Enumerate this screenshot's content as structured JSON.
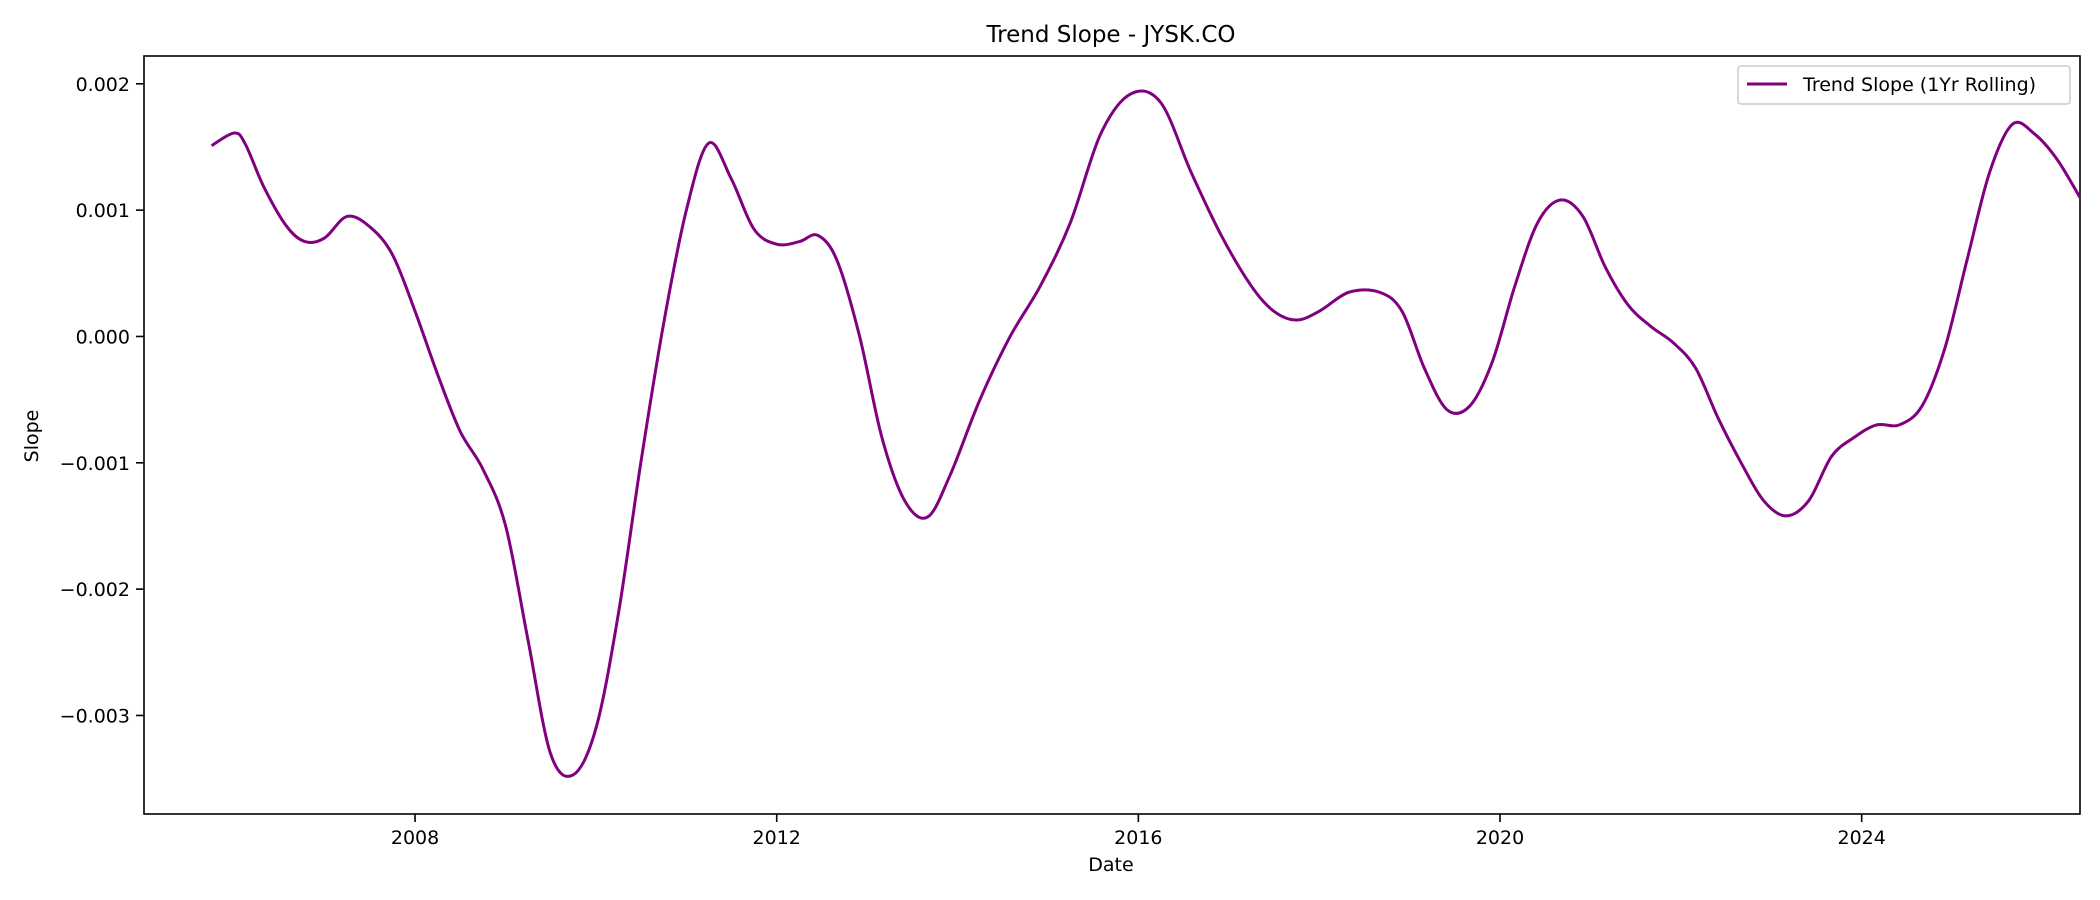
{
  "chart_data": {
    "type": "line",
    "title": "Trend Slope - JYSK.CO",
    "xlabel": "Date",
    "ylabel": "Slope",
    "xlim": [
      "2005-01-01",
      "2026-06-01"
    ],
    "ylim": [
      -0.00378,
      0.00222
    ],
    "x_ticks": [
      "2008-01-01",
      "2012-01-01",
      "2016-01-01",
      "2020-01-01",
      "2024-01-01"
    ],
    "x_tick_labels": [
      "2008",
      "2012",
      "2016",
      "2020",
      "2024"
    ],
    "y_ticks": [
      -0.003,
      -0.002,
      -0.001,
      0.0,
      0.001,
      0.002
    ],
    "y_tick_labels": [
      "−0.003",
      "−0.002",
      "−0.001",
      "0.000",
      "0.001",
      "0.002"
    ],
    "grid": false,
    "legend_position": "top-right",
    "line_color": "#800080",
    "series": [
      {
        "name": "Trend Slope (1Yr Rolling)",
        "color": "#800080",
        "points": [
          [
            "2005-10-01",
            0.00151
          ],
          [
            "2006-01-01",
            0.00161
          ],
          [
            "2006-02-15",
            0.00152
          ],
          [
            "2006-05-01",
            0.00118
          ],
          [
            "2006-08-01",
            0.00087
          ],
          [
            "2006-10-15",
            0.00075
          ],
          [
            "2007-01-01",
            0.00078
          ],
          [
            "2007-04-01",
            0.00095
          ],
          [
            "2007-07-01",
            0.00087
          ],
          [
            "2007-10-01",
            0.00065
          ],
          [
            "2008-01-01",
            0.0002
          ],
          [
            "2008-04-01",
            -0.0003
          ],
          [
            "2008-07-01",
            -0.00075
          ],
          [
            "2008-10-01",
            -0.00105
          ],
          [
            "2009-01-01",
            -0.0015
          ],
          [
            "2009-04-01",
            -0.0024
          ],
          [
            "2009-07-01",
            -0.0033
          ],
          [
            "2009-10-01",
            -0.00347
          ],
          [
            "2010-01-01",
            -0.0031
          ],
          [
            "2010-04-01",
            -0.0022
          ],
          [
            "2010-07-01",
            -0.001
          ],
          [
            "2010-10-01",
            0.0001
          ],
          [
            "2011-01-01",
            0.001
          ],
          [
            "2011-04-01",
            0.00153
          ],
          [
            "2011-07-01",
            0.00125
          ],
          [
            "2011-10-01",
            0.00085
          ],
          [
            "2012-01-01",
            0.00073
          ],
          [
            "2012-04-01",
            0.00075
          ],
          [
            "2012-06-15",
            0.0008
          ],
          [
            "2012-09-01",
            0.0006
          ],
          [
            "2012-12-01",
            0.0
          ],
          [
            "2013-03-01",
            -0.0008
          ],
          [
            "2013-06-01",
            -0.0013
          ],
          [
            "2013-09-01",
            -0.00143
          ],
          [
            "2013-12-01",
            -0.0011
          ],
          [
            "2014-04-01",
            -0.0005
          ],
          [
            "2014-08-01",
            0.0
          ],
          [
            "2014-12-01",
            0.0004
          ],
          [
            "2015-04-01",
            0.0009
          ],
          [
            "2015-08-01",
            0.0016
          ],
          [
            "2015-12-01",
            0.00192
          ],
          [
            "2016-04-01",
            0.00185
          ],
          [
            "2016-08-01",
            0.0013
          ],
          [
            "2016-12-01",
            0.0008
          ],
          [
            "2017-04-01",
            0.0004
          ],
          [
            "2017-07-01",
            0.0002
          ],
          [
            "2017-10-01",
            0.00013
          ],
          [
            "2018-01-01",
            0.0002
          ],
          [
            "2018-05-01",
            0.00035
          ],
          [
            "2018-09-01",
            0.00035
          ],
          [
            "2018-12-01",
            0.0002
          ],
          [
            "2019-03-01",
            -0.00025
          ],
          [
            "2019-06-01",
            -0.00058
          ],
          [
            "2019-09-01",
            -0.00055
          ],
          [
            "2019-12-01",
            -0.0002
          ],
          [
            "2020-03-01",
            0.0004
          ],
          [
            "2020-06-01",
            0.0009
          ],
          [
            "2020-09-01",
            0.00108
          ],
          [
            "2020-12-01",
            0.00095
          ],
          [
            "2021-03-01",
            0.00055
          ],
          [
            "2021-06-01",
            0.00025
          ],
          [
            "2021-09-01",
            8e-05
          ],
          [
            "2021-12-01",
            -5e-05
          ],
          [
            "2022-03-01",
            -0.00025
          ],
          [
            "2022-06-01",
            -0.00065
          ],
          [
            "2022-09-01",
            -0.001
          ],
          [
            "2022-12-01",
            -0.0013
          ],
          [
            "2023-03-01",
            -0.00142
          ],
          [
            "2023-06-01",
            -0.0013
          ],
          [
            "2023-09-01",
            -0.00095
          ],
          [
            "2023-12-01",
            -0.0008
          ],
          [
            "2024-03-01",
            -0.0007
          ],
          [
            "2024-06-01",
            -0.0007
          ],
          [
            "2024-09-01",
            -0.00055
          ],
          [
            "2024-12-01",
            -0.0001
          ],
          [
            "2025-03-01",
            0.0006
          ],
          [
            "2025-06-01",
            0.0013
          ],
          [
            "2025-09-01",
            0.00168
          ],
          [
            "2025-12-01",
            0.0016
          ],
          [
            "2026-03-01",
            0.0014
          ],
          [
            "2026-06-01",
            0.0011
          ]
        ]
      }
    ]
  }
}
